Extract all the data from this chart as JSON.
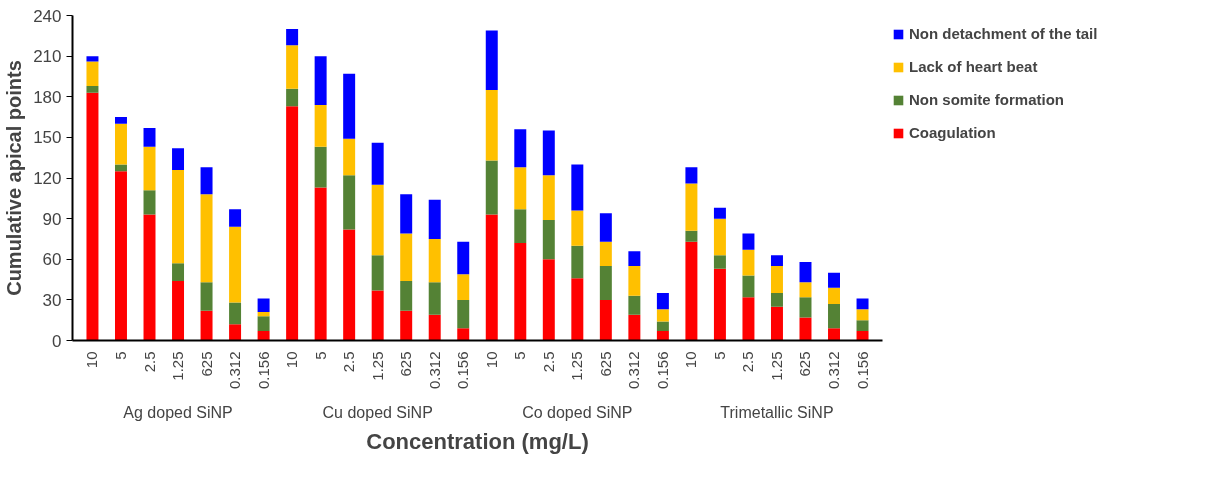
{
  "chart_data": {
    "type": "bar",
    "stacked": true,
    "xlabel": "Concentration (mg/L)",
    "ylabel": "Cumulative apical points",
    "categories": [
      "10",
      "5",
      "2.5",
      "1.25",
      "625",
      "0.312",
      "0.156",
      "10",
      "5",
      "2.5",
      "1.25",
      "625",
      "0.312",
      "0.156",
      "10",
      "5",
      "2.5",
      "1.25",
      "625",
      "0.312",
      "0.156",
      "10",
      "5",
      "2.5",
      "1.25",
      "625",
      "0.312",
      "0.156"
    ],
    "annotations": [
      "Ag doped SiNP",
      "Cu doped SiNP",
      "Co doped SiNP",
      "Trimetallic SiNP"
    ],
    "series": [
      {
        "name": "Coagulation",
        "color": "#ff0000",
        "values": [
          183,
          125,
          93,
          44,
          22,
          12,
          7,
          173,
          113,
          82,
          37,
          22,
          19,
          9,
          93,
          72,
          60,
          46,
          30,
          19,
          7,
          73,
          53,
          32,
          25,
          17,
          9,
          7
        ]
      },
      {
        "name": "Non somite formation",
        "color": "#548235",
        "values": [
          5,
          5,
          18,
          13,
          21,
          16,
          11,
          13,
          30,
          40,
          26,
          22,
          24,
          21,
          40,
          25,
          29,
          24,
          25,
          14,
          7,
          8,
          10,
          16,
          10,
          15,
          18,
          8
        ]
      },
      {
        "name": "Lack of heart beat",
        "color": "#ffc000",
        "values": [
          18,
          30,
          32,
          69,
          65,
          56,
          3,
          32,
          31,
          27,
          52,
          35,
          32,
          19,
          52,
          31,
          33,
          26,
          18,
          22,
          9,
          35,
          27,
          19,
          20,
          11,
          12,
          8
        ]
      },
      {
        "name": "Non detachment of the tail",
        "color": "#0000ff",
        "values": [
          4,
          5,
          14,
          16,
          20,
          13,
          10,
          12,
          36,
          48,
          31,
          29,
          29,
          24,
          44,
          28,
          33,
          34,
          21,
          11,
          12,
          12,
          8,
          12,
          8,
          15,
          11,
          8
        ]
      }
    ],
    "ylim": [
      0,
      240
    ],
    "yticks": [
      0,
      30,
      60,
      90,
      120,
      150,
      180,
      210,
      240
    ],
    "grid": false,
    "legend": "top right"
  }
}
